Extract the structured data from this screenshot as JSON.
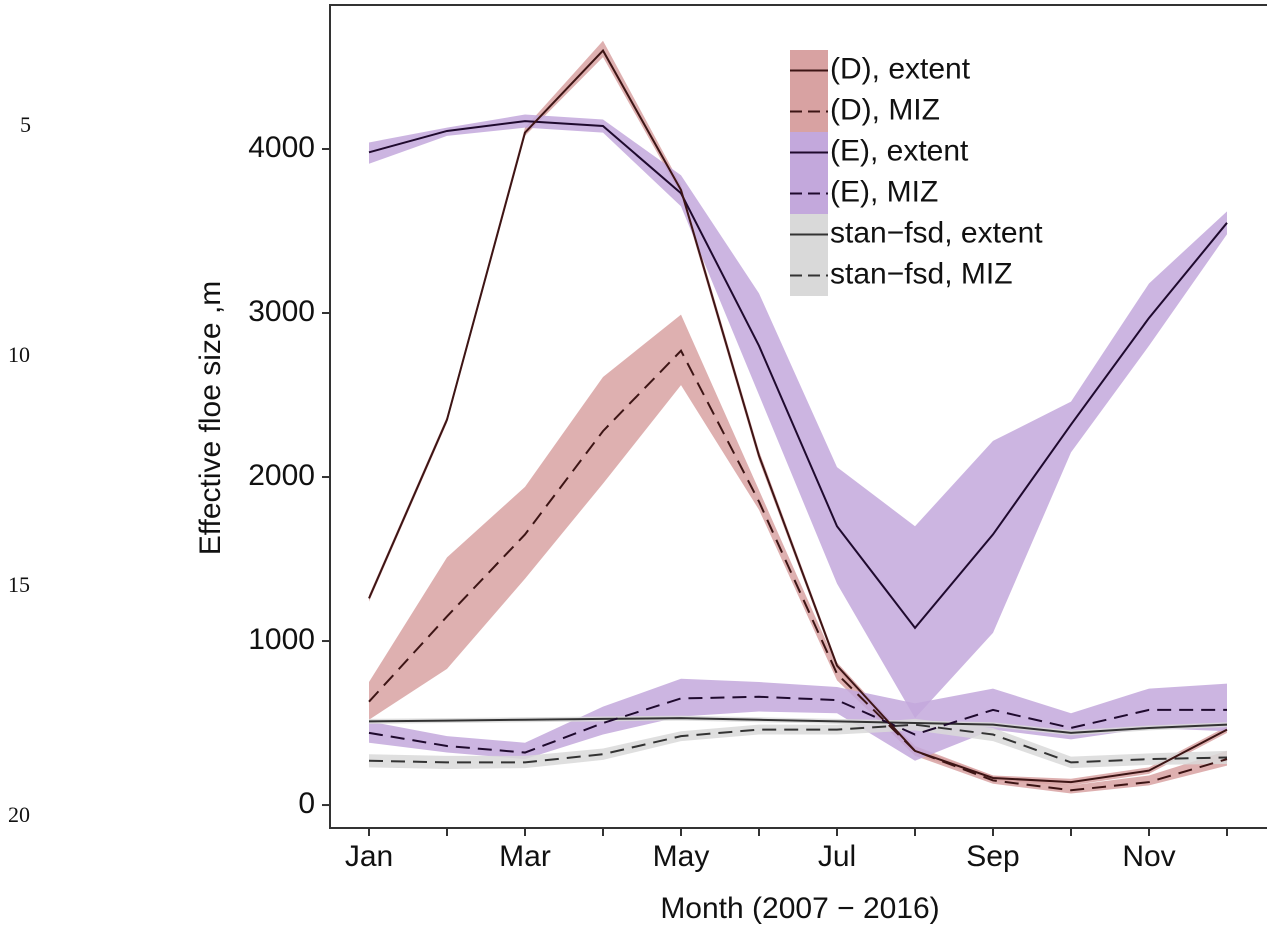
{
  "line_numbers": [
    "5",
    "10",
    "15",
    "20"
  ],
  "chart_data": {
    "type": "line",
    "xlabel": "Month (2007 − 2016)",
    "ylabel": "Effective floe size ,m",
    "categories": [
      "Jan",
      null,
      "Mar",
      null,
      "May",
      null,
      "Jul",
      null,
      "Sep",
      null,
      "Nov",
      null
    ],
    "ylim": [
      -140,
      4878
    ],
    "yticks": [
      0,
      1000,
      2000,
      3000,
      4000
    ],
    "legend": "top-right",
    "series": [
      {
        "name": "(D), extent",
        "color": "#d8a2a2",
        "line_color": "#3d1515",
        "dashed": false,
        "values": [
          1260,
          2350,
          4100,
          4600,
          3750,
          2130,
          850,
          330,
          165,
          140,
          210,
          460
        ],
        "lower": [
          1240,
          2330,
          4080,
          4560,
          3720,
          2100,
          830,
          310,
          150,
          120,
          190,
          440
        ],
        "upper": [
          1280,
          2370,
          4130,
          4660,
          3780,
          2160,
          870,
          350,
          180,
          160,
          230,
          480
        ]
      },
      {
        "name": "(D), MIZ",
        "color": "#d8a2a2",
        "line_color": "#3d1515",
        "dashed": true,
        "values": [
          630,
          1150,
          1650,
          2280,
          2770,
          1850,
          800,
          330,
          150,
          90,
          140,
          280
        ],
        "lower": [
          520,
          830,
          1380,
          1960,
          2560,
          1800,
          760,
          300,
          130,
          70,
          120,
          240
        ],
        "upper": [
          750,
          1510,
          1940,
          2610,
          2990,
          1920,
          850,
          360,
          180,
          120,
          180,
          330
        ]
      },
      {
        "name": "(E), extent",
        "color": "#c3a8dc",
        "line_color": "#1f0a2e",
        "dashed": false,
        "values": [
          3980,
          4110,
          4170,
          4140,
          3730,
          2800,
          1700,
          1080,
          1650,
          2320,
          2970,
          3550
        ],
        "lower": [
          3910,
          4080,
          4130,
          4100,
          3650,
          2500,
          1350,
          530,
          1050,
          2150,
          2800,
          3480
        ],
        "upper": [
          4040,
          4130,
          4210,
          4180,
          3840,
          3120,
          2060,
          1700,
          2220,
          2460,
          3180,
          3620
        ]
      },
      {
        "name": "(E), MIZ",
        "color": "#c3a8dc",
        "line_color": "#1f0a2e",
        "dashed": true,
        "values": [
          440,
          360,
          320,
          500,
          650,
          660,
          640,
          430,
          580,
          470,
          580,
          580
        ],
        "lower": [
          380,
          320,
          280,
          430,
          540,
          570,
          560,
          270,
          460,
          400,
          470,
          450
        ],
        "upper": [
          510,
          420,
          380,
          600,
          770,
          750,
          720,
          620,
          710,
          560,
          710,
          740
        ]
      },
      {
        "name": "stan−fsd, extent",
        "color": "#d9d9d9",
        "line_color": "#333333",
        "dashed": false,
        "values": [
          510,
          515,
          520,
          525,
          530,
          520,
          510,
          500,
          490,
          440,
          470,
          490
        ],
        "lower": [
          495,
          500,
          505,
          510,
          515,
          505,
          495,
          485,
          475,
          425,
          455,
          475
        ],
        "upper": [
          525,
          530,
          535,
          540,
          545,
          535,
          525,
          515,
          505,
          455,
          485,
          505
        ]
      },
      {
        "name": "stan−fsd, MIZ",
        "color": "#d9d9d9",
        "line_color": "#333333",
        "dashed": true,
        "values": [
          270,
          260,
          260,
          310,
          420,
          460,
          460,
          490,
          430,
          260,
          280,
          290
        ],
        "lower": [
          230,
          220,
          225,
          275,
          390,
          430,
          430,
          455,
          390,
          225,
          245,
          250
        ],
        "upper": [
          310,
          300,
          300,
          345,
          450,
          490,
          490,
          525,
          470,
          295,
          315,
          330
        ]
      }
    ]
  }
}
